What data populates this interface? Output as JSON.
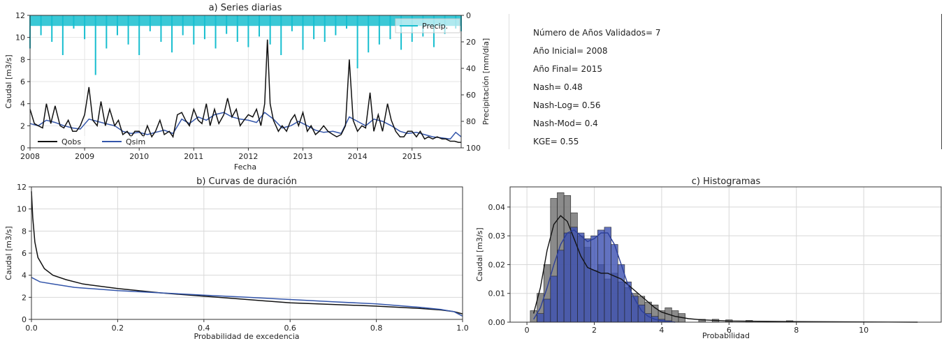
{
  "chart_data": [
    {
      "type": "line",
      "title": "a) Series diarias",
      "xlabel": "Fecha",
      "ylabel": "Caudal [m3/s]",
      "y2label": "Precipitación [mm/día]",
      "xlim": [
        2008,
        2015.9
      ],
      "ylim": [
        0,
        12
      ],
      "y2lim": [
        100,
        0
      ],
      "xticks": [
        "2008",
        "2009",
        "2010",
        "2011",
        "2012",
        "2013",
        "2014",
        "2015"
      ],
      "yticks": [
        "0",
        "2",
        "4",
        "6",
        "8",
        "10",
        "12"
      ],
      "y2ticks": [
        "0",
        "20",
        "40",
        "60",
        "80",
        "100"
      ],
      "grid": true,
      "legend": [
        {
          "name": "Qobs",
          "location": "bottom-left"
        },
        {
          "name": "Qsim",
          "location": "bottom-left"
        },
        {
          "name": "Precip.",
          "location": "top-right"
        }
      ],
      "series": [
        {
          "name": "Qobs",
          "color": "#111111",
          "x": [
            2008.0,
            2008.08,
            2008.15,
            2008.23,
            2008.3,
            2008.38,
            2008.46,
            2008.55,
            2008.62,
            2008.7,
            2008.78,
            2008.85,
            2008.92,
            2009.0,
            2009.08,
            2009.15,
            2009.23,
            2009.3,
            2009.38,
            2009.46,
            2009.55,
            2009.62,
            2009.7,
            2009.78,
            2009.85,
            2009.92,
            2010.0,
            2010.08,
            2010.15,
            2010.23,
            2010.3,
            2010.38,
            2010.46,
            2010.55,
            2010.62,
            2010.7,
            2010.78,
            2010.85,
            2010.92,
            2011.0,
            2011.08,
            2011.15,
            2011.23,
            2011.3,
            2011.38,
            2011.46,
            2011.55,
            2011.62,
            2011.7,
            2011.78,
            2011.85,
            2011.92,
            2012.0,
            2012.08,
            2012.15,
            2012.23,
            2012.3,
            2012.35,
            2012.4,
            2012.46,
            2012.55,
            2012.62,
            2012.7,
            2012.78,
            2012.85,
            2012.92,
            2013.0,
            2013.08,
            2013.15,
            2013.23,
            2013.3,
            2013.38,
            2013.46,
            2013.55,
            2013.62,
            2013.7,
            2013.78,
            2013.85,
            2013.92,
            2014.0,
            2014.08,
            2014.15,
            2014.23,
            2014.3,
            2014.38,
            2014.46,
            2014.55,
            2014.62,
            2014.7,
            2014.78,
            2014.85,
            2014.92,
            2015.0,
            2015.08,
            2015.15,
            2015.23,
            2015.3,
            2015.38,
            2015.46,
            2015.55,
            2015.62,
            2015.7,
            2015.78,
            2015.85,
            2015.9
          ],
          "values": [
            3.5,
            2.2,
            2.0,
            1.8,
            4.0,
            2.2,
            3.8,
            2.0,
            1.8,
            2.5,
            1.5,
            1.5,
            2.0,
            3.0,
            5.5,
            2.5,
            2.0,
            4.2,
            2.0,
            3.5,
            2.0,
            2.5,
            1.2,
            1.5,
            1.0,
            1.5,
            1.5,
            1.0,
            2.0,
            1.0,
            1.5,
            2.5,
            1.2,
            1.5,
            1.0,
            3.0,
            3.2,
            2.5,
            2.0,
            3.5,
            2.5,
            2.2,
            4.0,
            2.0,
            3.5,
            2.2,
            3.0,
            4.5,
            2.8,
            3.5,
            2.0,
            2.5,
            3.0,
            2.8,
            3.5,
            2.0,
            4.0,
            9.8,
            4.0,
            2.5,
            1.5,
            2.0,
            1.5,
            2.5,
            3.0,
            2.0,
            3.2,
            1.5,
            2.0,
            1.2,
            1.5,
            2.0,
            1.5,
            1.2,
            1.0,
            1.2,
            2.0,
            8.0,
            2.5,
            1.5,
            2.0,
            1.8,
            5.0,
            1.5,
            3.0,
            1.5,
            4.0,
            2.5,
            1.5,
            1.0,
            1.0,
            1.5,
            1.5,
            1.0,
            1.5,
            0.8,
            1.0,
            0.8,
            1.0,
            0.8,
            0.8,
            0.6,
            0.6,
            0.5,
            0.5
          ]
        },
        {
          "name": "Qsim",
          "color": "#3355aa",
          "x": [
            2008.0,
            2008.15,
            2008.3,
            2008.46,
            2008.62,
            2008.78,
            2008.92,
            2009.08,
            2009.23,
            2009.38,
            2009.55,
            2009.7,
            2009.85,
            2010.0,
            2010.15,
            2010.3,
            2010.46,
            2010.62,
            2010.78,
            2010.92,
            2011.08,
            2011.23,
            2011.38,
            2011.55,
            2011.7,
            2011.85,
            2012.0,
            2012.15,
            2012.3,
            2012.46,
            2012.62,
            2012.78,
            2012.92,
            2013.08,
            2013.23,
            2013.38,
            2013.55,
            2013.7,
            2013.85,
            2014.0,
            2014.15,
            2014.3,
            2014.46,
            2014.62,
            2014.78,
            2014.92,
            2015.08,
            2015.23,
            2015.38,
            2015.55,
            2015.7,
            2015.8,
            2015.9
          ],
          "values": [
            2.2,
            2.0,
            2.5,
            2.3,
            2.0,
            1.8,
            1.7,
            2.6,
            2.4,
            2.2,
            2.0,
            1.5,
            1.3,
            1.4,
            1.2,
            1.4,
            1.6,
            1.3,
            2.6,
            2.2,
            2.8,
            2.5,
            3.0,
            3.2,
            2.8,
            2.6,
            2.5,
            2.3,
            3.2,
            2.6,
            1.8,
            2.0,
            2.4,
            2.0,
            1.6,
            1.4,
            1.5,
            1.3,
            2.8,
            2.4,
            2.0,
            2.6,
            2.4,
            2.0,
            1.5,
            1.3,
            1.4,
            1.2,
            1.0,
            0.9,
            0.8,
            1.4,
            1.0
          ]
        },
        {
          "name": "Precip.",
          "color": "#17becf",
          "axis": "y2",
          "x": [
            2008.0,
            2008.2,
            2008.4,
            2008.6,
            2008.8,
            2009.0,
            2009.2,
            2009.4,
            2009.6,
            2009.8,
            2010.0,
            2010.2,
            2010.4,
            2010.6,
            2010.8,
            2011.0,
            2011.2,
            2011.4,
            2011.6,
            2011.8,
            2012.0,
            2012.2,
            2012.4,
            2012.6,
            2012.8,
            2013.0,
            2013.2,
            2013.4,
            2013.6,
            2013.8,
            2014.0,
            2014.2,
            2014.4,
            2014.6,
            2014.8,
            2015.0,
            2015.2,
            2015.4,
            2015.6,
            2015.8,
            2015.9
          ],
          "values": [
            25,
            15,
            20,
            30,
            10,
            18,
            45,
            25,
            15,
            22,
            30,
            12,
            20,
            28,
            15,
            22,
            18,
            25,
            14,
            20,
            24,
            16,
            22,
            30,
            12,
            26,
            18,
            20,
            15,
            10,
            40,
            28,
            22,
            18,
            26,
            20,
            16,
            24,
            14,
            10,
            12
          ]
        }
      ]
    },
    {
      "type": "line",
      "title": "b) Curvas de duración",
      "xlabel": "Probabilidad de excedencia",
      "ylabel": "Caudal [m3/s]",
      "xlim": [
        0,
        1
      ],
      "ylim": [
        0,
        12
      ],
      "xticks": [
        "0.0",
        "0.2",
        "0.4",
        "0.6",
        "0.8",
        "1.0"
      ],
      "yticks": [
        "0",
        "2",
        "4",
        "6",
        "8",
        "10",
        "12"
      ],
      "grid": true,
      "series": [
        {
          "name": "Qobs",
          "color": "#111111",
          "x": [
            0,
            0.003,
            0.008,
            0.015,
            0.03,
            0.05,
            0.08,
            0.12,
            0.2,
            0.3,
            0.4,
            0.5,
            0.6,
            0.7,
            0.8,
            0.9,
            0.95,
            0.98,
            1.0
          ],
          "values": [
            11.6,
            9.2,
            7.0,
            5.6,
            4.6,
            4.0,
            3.6,
            3.2,
            2.8,
            2.4,
            2.1,
            1.8,
            1.5,
            1.35,
            1.2,
            1.0,
            0.85,
            0.7,
            0.5
          ]
        },
        {
          "name": "Qsim",
          "color": "#3355aa",
          "x": [
            0,
            0.02,
            0.05,
            0.1,
            0.2,
            0.3,
            0.4,
            0.5,
            0.6,
            0.7,
            0.8,
            0.9,
            0.95,
            0.98,
            1.0
          ],
          "values": [
            3.8,
            3.4,
            3.2,
            2.9,
            2.6,
            2.4,
            2.2,
            2.0,
            1.8,
            1.6,
            1.4,
            1.1,
            0.9,
            0.7,
            0.3
          ]
        }
      ]
    },
    {
      "type": "bar",
      "title": "c) Histogramas",
      "xlabel": "Probabilidad",
      "ylabel": "Caudal [m3/s]",
      "xlim": [
        -0.5,
        12.3
      ],
      "ylim": [
        0,
        0.047
      ],
      "xticks": [
        "0",
        "2",
        "4",
        "6",
        "8",
        "10"
      ],
      "yticks": [
        "0.00",
        "0.01",
        "0.02",
        "0.03",
        "0.04"
      ],
      "grid": true,
      "bin_width": 0.2,
      "series": [
        {
          "name": "Qobs",
          "color": "#777777",
          "x": [
            0.2,
            0.4,
            0.6,
            0.8,
            1.0,
            1.2,
            1.4,
            1.6,
            1.8,
            2.0,
            2.2,
            2.4,
            2.6,
            2.8,
            3.0,
            3.2,
            3.4,
            3.6,
            3.8,
            4.0,
            4.2,
            4.4,
            4.6,
            5.2,
            5.6,
            6.0,
            6.6,
            7.8
          ],
          "values": [
            0.004,
            0.01,
            0.02,
            0.043,
            0.045,
            0.044,
            0.038,
            0.03,
            0.026,
            0.018,
            0.02,
            0.015,
            0.017,
            0.014,
            0.012,
            0.01,
            0.009,
            0.007,
            0.006,
            0.004,
            0.005,
            0.004,
            0.003,
            0.001,
            0.001,
            0.0008,
            0.0006,
            0.0005
          ],
          "kde_x": [
            0.2,
            0.4,
            0.6,
            0.8,
            1.0,
            1.2,
            1.4,
            1.6,
            1.8,
            2.0,
            2.2,
            2.4,
            2.6,
            2.8,
            3.0,
            3.2,
            3.4,
            3.6,
            3.8,
            4.0,
            4.4,
            4.8,
            5.2,
            6.0,
            8.0,
            11.6
          ],
          "kde": [
            0.003,
            0.012,
            0.025,
            0.034,
            0.037,
            0.035,
            0.029,
            0.023,
            0.019,
            0.018,
            0.017,
            0.017,
            0.016,
            0.015,
            0.013,
            0.011,
            0.009,
            0.007,
            0.005,
            0.0035,
            0.002,
            0.0012,
            0.0008,
            0.0004,
            0.0002,
            0.0
          ]
        },
        {
          "name": "Qsim",
          "color": "#3b4fb0",
          "x": [
            0.4,
            0.6,
            0.8,
            1.0,
            1.2,
            1.4,
            1.6,
            1.8,
            2.0,
            2.2,
            2.4,
            2.6,
            2.8,
            3.0,
            3.2,
            3.4,
            3.6,
            3.8,
            4.0,
            4.2
          ],
          "values": [
            0.003,
            0.008,
            0.016,
            0.025,
            0.031,
            0.033,
            0.031,
            0.029,
            0.03,
            0.032,
            0.033,
            0.027,
            0.02,
            0.014,
            0.009,
            0.006,
            0.003,
            0.002,
            0.001,
            0.0005
          ],
          "kde_x": [
            0.2,
            0.4,
            0.6,
            0.8,
            1.0,
            1.2,
            1.4,
            1.6,
            1.8,
            2.0,
            2.2,
            2.4,
            2.6,
            2.8,
            3.0,
            3.2,
            3.4,
            3.6,
            3.8,
            4.0,
            4.4
          ],
          "kde": [
            0.001,
            0.005,
            0.012,
            0.02,
            0.027,
            0.031,
            0.032,
            0.03,
            0.028,
            0.029,
            0.031,
            0.031,
            0.027,
            0.02,
            0.013,
            0.008,
            0.004,
            0.002,
            0.001,
            0.0005,
            0.0
          ]
        }
      ]
    }
  ],
  "stats": [
    "Número de Años Validados= 7",
    "Año Inicial= 2008",
    "Año Final= 2015",
    "Nash= 0.48",
    "Nash-Log= 0.56",
    "Nash-Mod= 0.4",
    "KGE= 0.55"
  ]
}
